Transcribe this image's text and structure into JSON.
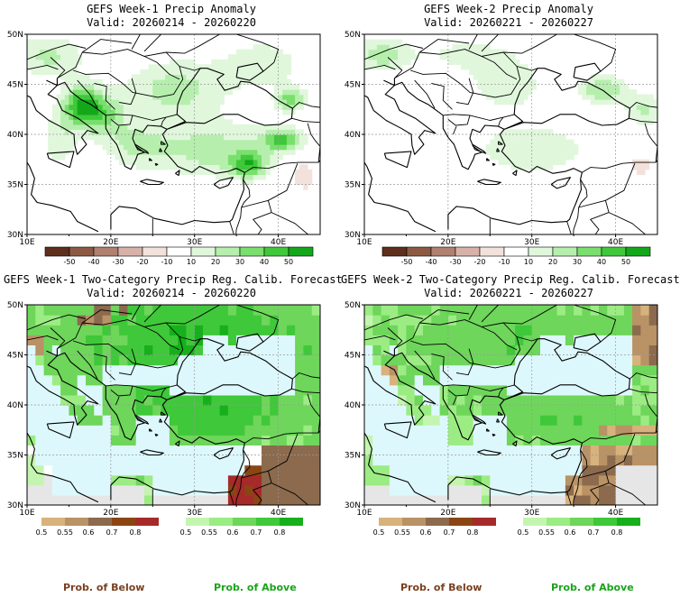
{
  "panels": [
    {
      "title": "GEFS Week-1 Precip Anomaly",
      "valid": "Valid: 20260214 - 20260220",
      "type": "anomaly"
    },
    {
      "title": "GEFS Week-2 Precip Anomaly",
      "valid": "Valid: 20260221 - 20260227",
      "type": "anomaly"
    },
    {
      "title": "GEFS Week-1 Two-Category Precip Reg. Calib. Forecast",
      "valid": "Valid: 20260214 - 20260220",
      "type": "probability"
    },
    {
      "title": "GEFS Week-2 Two-Category Precip Reg. Calib. Forecast",
      "valid": "Valid: 20260221 - 20260227",
      "type": "probability"
    }
  ],
  "lat_labels": [
    "50N",
    "45N",
    "40N",
    "35N",
    "30N"
  ],
  "lon_labels": [
    "10E",
    "20E",
    "30E",
    "40E"
  ],
  "anomaly_colorbar": {
    "labels": [
      "-50",
      "-40",
      "-30",
      "-20",
      "-10",
      "10",
      "20",
      "30",
      "40",
      "50"
    ],
    "colors": [
      "#5e2f1b",
      "#8c5a43",
      "#b08070",
      "#d8b2a8",
      "#f3e2dc",
      "#ffffff",
      "#e0f7dc",
      "#b6efad",
      "#79df6d",
      "#3fc83a",
      "#12a81a"
    ]
  },
  "below_colorbar": {
    "labels": [
      "0.5",
      "0.55",
      "0.6",
      "0.7",
      "0.8"
    ],
    "colors": [
      "#d8b27c",
      "#b99266",
      "#8c6a4d",
      "#8b4513",
      "#a52a2a"
    ]
  },
  "above_colorbar": {
    "labels": [
      "0.5",
      "0.55",
      "0.6",
      "0.7",
      "0.8"
    ],
    "colors": [
      "#c4f5b0",
      "#9cec84",
      "#6ed65a",
      "#3fc83a",
      "#16b01c"
    ]
  },
  "legend": {
    "below": "Prob. of Below",
    "above": "Prob. of Above",
    "below_color": "#7a4020",
    "above_color": "#1aa31a"
  }
}
